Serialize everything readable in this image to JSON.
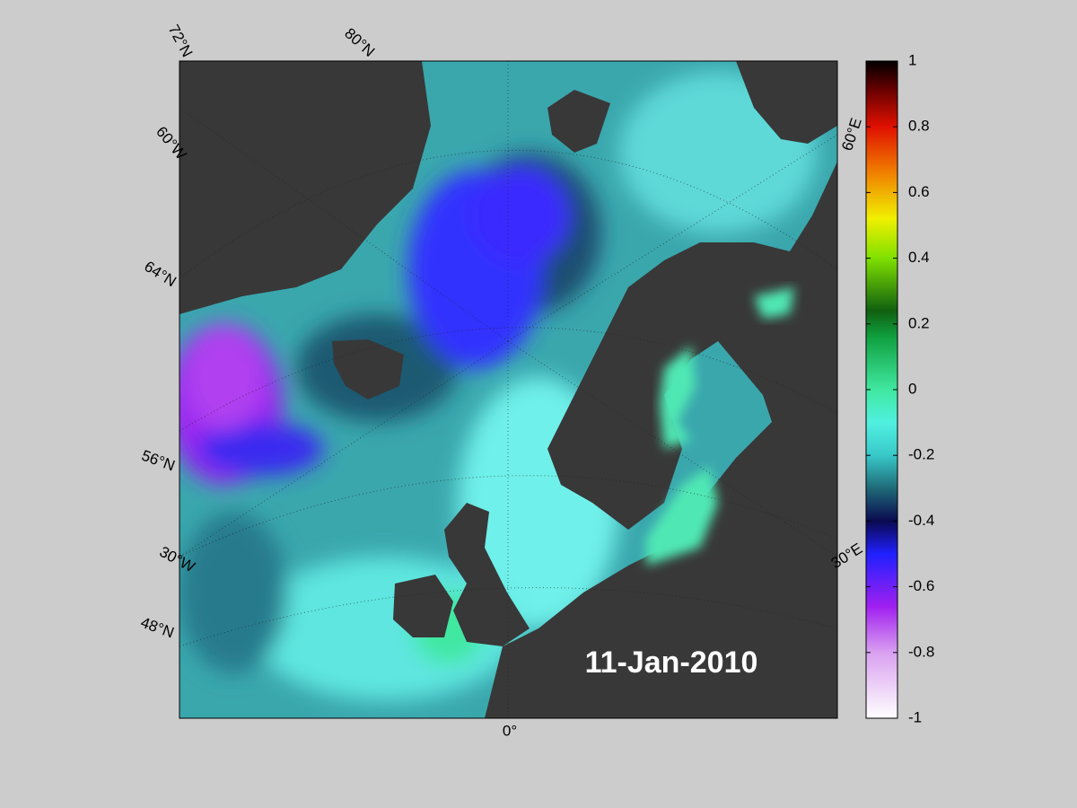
{
  "map": {
    "date": "11-Jan-2010",
    "labels": {
      "lat72": "72°N",
      "lat80": "80°N",
      "lon60w": "60°W",
      "lat64": "64°N",
      "lat56": "56°N",
      "lon30w": "30°W",
      "lat48": "48°N",
      "lon60e": "60°E",
      "lon30e": "30°E",
      "lon0": "0°"
    },
    "colorbar": {
      "lim": [
        -1,
        1
      ],
      "ticks": [
        1,
        0.8,
        0.6,
        0.4,
        0.2,
        0,
        -0.2,
        -0.4,
        -0.6,
        -0.8,
        -1
      ]
    }
  }
}
